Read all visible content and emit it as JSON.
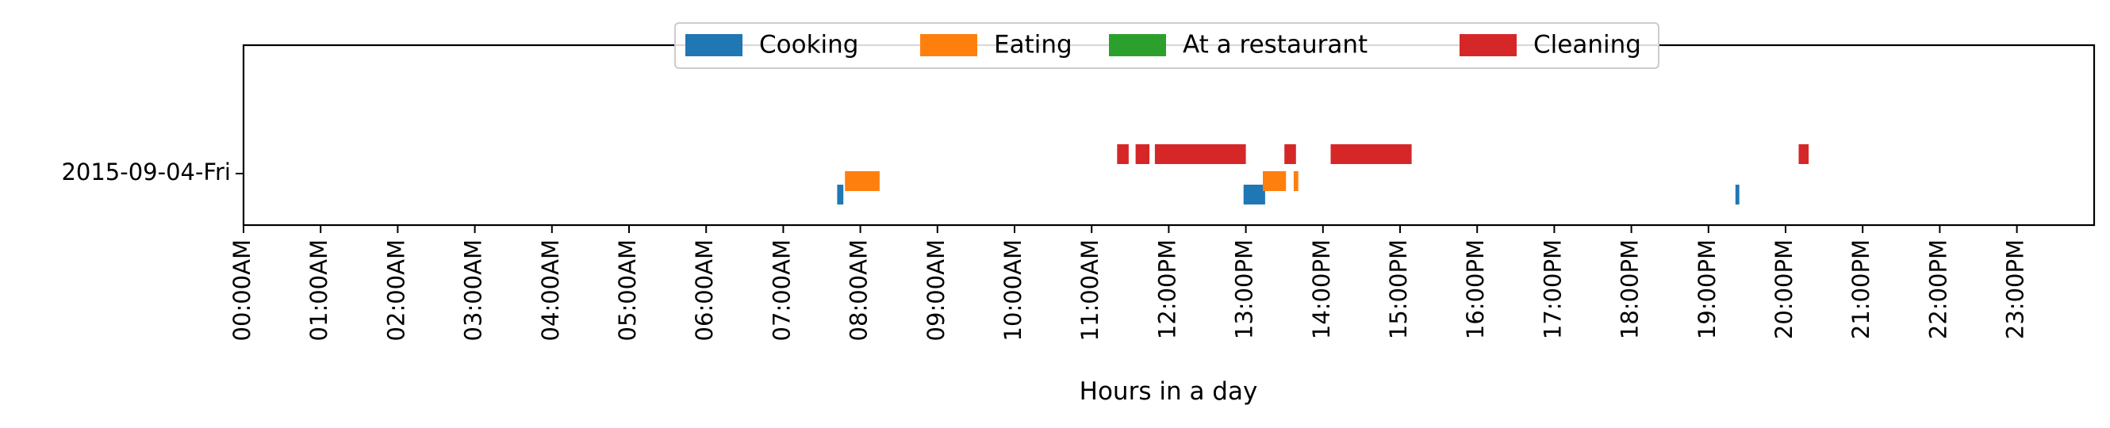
{
  "chart_data": {
    "type": "bar",
    "orientation": "horizontal-timeline",
    "xlabel": "Hours in a day",
    "x_unit": "hours",
    "xlim": [
      0,
      24
    ],
    "x_ticks": [
      {
        "value": 0,
        "label": "00:00AM"
      },
      {
        "value": 1,
        "label": "01:00AM"
      },
      {
        "value": 2,
        "label": "02:00AM"
      },
      {
        "value": 3,
        "label": "03:00AM"
      },
      {
        "value": 4,
        "label": "04:00AM"
      },
      {
        "value": 5,
        "label": "05:00AM"
      },
      {
        "value": 6,
        "label": "06:00AM"
      },
      {
        "value": 7,
        "label": "07:00AM"
      },
      {
        "value": 8,
        "label": "08:00AM"
      },
      {
        "value": 9,
        "label": "09:00AM"
      },
      {
        "value": 10,
        "label": "10:00AM"
      },
      {
        "value": 11,
        "label": "11:00AM"
      },
      {
        "value": 12,
        "label": "12:00PM"
      },
      {
        "value": 13,
        "label": "13:00PM"
      },
      {
        "value": 14,
        "label": "14:00PM"
      },
      {
        "value": 15,
        "label": "15:00PM"
      },
      {
        "value": 16,
        "label": "16:00PM"
      },
      {
        "value": 17,
        "label": "17:00PM"
      },
      {
        "value": 18,
        "label": "18:00PM"
      },
      {
        "value": 19,
        "label": "19:00PM"
      },
      {
        "value": 20,
        "label": "20:00PM"
      },
      {
        "value": 21,
        "label": "21:00PM"
      },
      {
        "value": 22,
        "label": "22:00PM"
      },
      {
        "value": 23,
        "label": "23:00PM"
      }
    ],
    "categories": [
      "2015-09-04-Fri"
    ],
    "legend_position": "top-center",
    "grid": false,
    "series": [
      {
        "name": "Cooking",
        "color": "#1f77b4",
        "intervals": [
          [
            7.7,
            7.78
          ],
          [
            12.97,
            13.25
          ],
          [
            19.35,
            19.4
          ]
        ]
      },
      {
        "name": "Eating",
        "color": "#ff7f0e",
        "intervals": [
          [
            7.8,
            8.25
          ],
          [
            13.22,
            13.52
          ],
          [
            13.62,
            13.68
          ]
        ]
      },
      {
        "name": "At a restaurant",
        "color": "#2ca02c",
        "intervals": []
      },
      {
        "name": "Cleaning",
        "color": "#d62728",
        "intervals": [
          [
            11.33,
            11.48
          ],
          [
            11.57,
            11.75
          ],
          [
            11.82,
            13.0
          ],
          [
            13.5,
            13.65
          ],
          [
            14.1,
            15.15
          ],
          [
            20.17,
            20.3
          ]
        ]
      }
    ]
  }
}
